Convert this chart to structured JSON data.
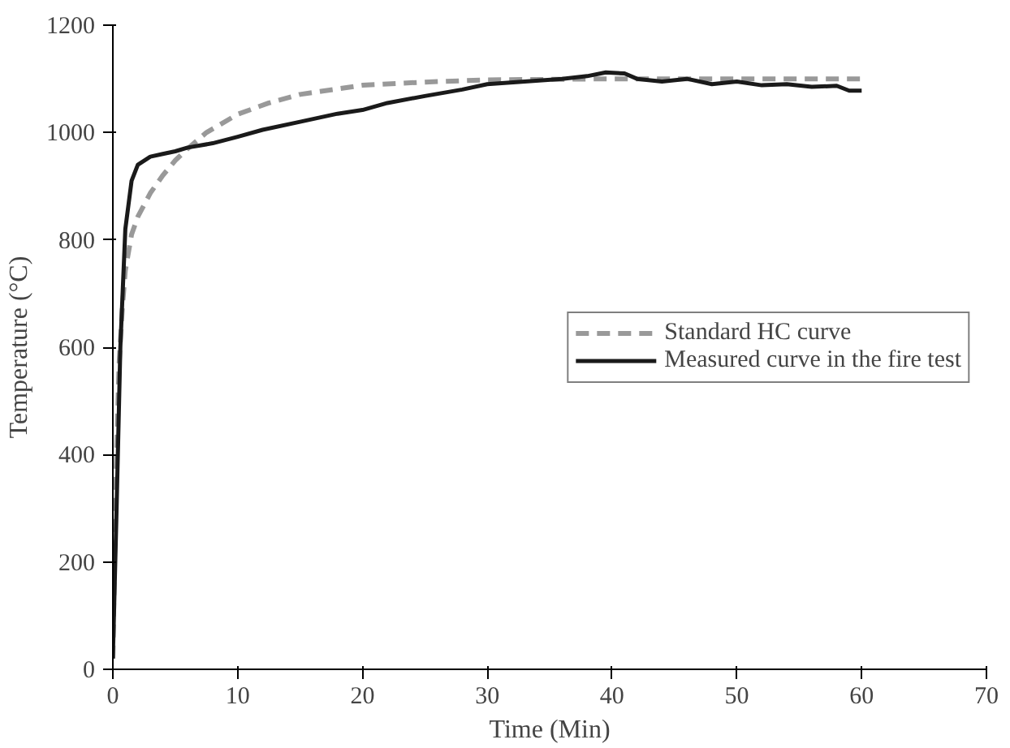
{
  "chart_data": {
    "type": "line",
    "xlabel": "Time (Min)",
    "ylabel": "Temperature (°C)",
    "xlim": [
      0,
      70
    ],
    "ylim": [
      0,
      1200
    ],
    "xticks": [
      0,
      10,
      20,
      30,
      40,
      50,
      60,
      70
    ],
    "yticks": [
      0,
      200,
      400,
      600,
      800,
      1000,
      1200
    ],
    "grid": false,
    "legend": "right",
    "series": [
      {
        "name": "Standard HC curve",
        "color": "#999999",
        "line_style": "dashed",
        "x": [
          0,
          0.25,
          0.5,
          0.75,
          1,
          1.5,
          2,
          3,
          4,
          5,
          6,
          7.5,
          10,
          12.5,
          15,
          20,
          25,
          30,
          40,
          50,
          60
        ],
        "values": [
          20,
          360,
          569,
          670,
          743,
          810,
          843,
          887,
          920,
          948,
          970,
          1000,
          1034,
          1055,
          1071,
          1088,
          1094,
          1098,
          1100,
          1100,
          1100
        ]
      },
      {
        "name": "Measured curve in the fire test",
        "color": "#1a1a1a",
        "line_style": "solid",
        "x": [
          0,
          0.3,
          0.6,
          1,
          1.5,
          2,
          3,
          4,
          5,
          6,
          8,
          10,
          12,
          15,
          18,
          20,
          22,
          25,
          28,
          30,
          33,
          36,
          38,
          39.5,
          41,
          42,
          44,
          46,
          48,
          50,
          52,
          54,
          56,
          58,
          59,
          60
        ],
        "values": [
          20,
          300,
          600,
          820,
          910,
          940,
          955,
          960,
          965,
          972,
          980,
          992,
          1005,
          1020,
          1035,
          1042,
          1055,
          1068,
          1080,
          1090,
          1095,
          1100,
          1105,
          1112,
          1110,
          1100,
          1095,
          1100,
          1090,
          1095,
          1088,
          1090,
          1085,
          1087,
          1078,
          1078
        ]
      }
    ]
  }
}
